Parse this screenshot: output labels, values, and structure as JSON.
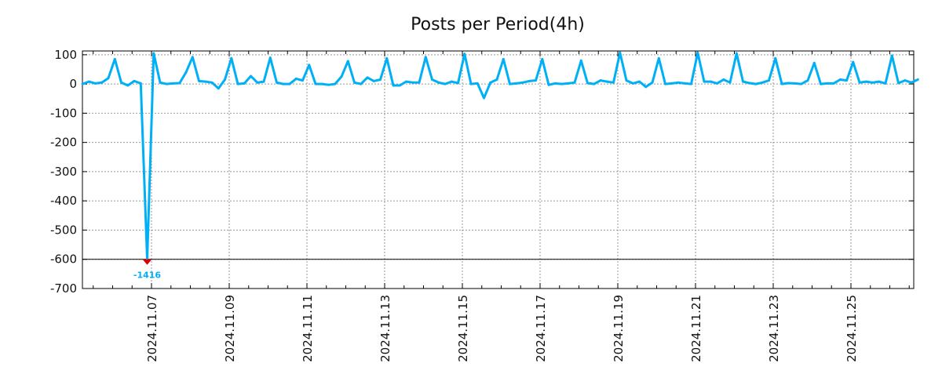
{
  "chart_data": {
    "type": "line",
    "title": "Posts per Period(4h)",
    "xlabel": "",
    "ylabel": "",
    "x_start": "2024-11-05 05:20",
    "step_hours": 4,
    "ylim": [
      -700,
      113
    ],
    "yticks": [
      100,
      0,
      -100,
      -200,
      -300,
      -400,
      -500,
      -600,
      -700
    ],
    "ytick_labels": [
      "100",
      "0",
      "-100",
      "-200",
      "-300",
      "-400",
      "-500",
      "-600",
      "-700"
    ],
    "xtick_labels": [
      "2024.11.07",
      "2024.11.09",
      "2024.11.11",
      "2024.11.13",
      "2024.11.15",
      "2024.11.17",
      "2024.11.19",
      "2024.11.21",
      "2024.11.23",
      "2024.11.25"
    ],
    "grid": true,
    "clip_value": -600,
    "clipped_label": "-1416",
    "colors": {
      "line": "#00b0f6",
      "marker": "#dd0000",
      "clip_line": "#000000"
    },
    "series": [
      {
        "name": "posts",
        "values": [
          0,
          8,
          2,
          5,
          20,
          85,
          5,
          -5,
          10,
          2,
          -1416,
          105,
          5,
          0,
          2,
          3,
          40,
          92,
          10,
          8,
          5,
          -15,
          15,
          88,
          0,
          2,
          27,
          5,
          8,
          90,
          5,
          0,
          0,
          18,
          12,
          65,
          0,
          0,
          -3,
          0,
          25,
          78,
          5,
          0,
          22,
          10,
          15,
          88,
          -5,
          -5,
          8,
          5,
          5,
          92,
          15,
          5,
          0,
          8,
          3,
          103,
          0,
          2,
          -48,
          5,
          15,
          85,
          0,
          2,
          5,
          10,
          12,
          85,
          -3,
          2,
          0,
          2,
          5,
          80,
          3,
          0,
          12,
          8,
          5,
          107,
          12,
          2,
          8,
          -10,
          5,
          88,
          0,
          2,
          5,
          2,
          0,
          107,
          8,
          8,
          2,
          15,
          5,
          105,
          8,
          3,
          0,
          5,
          12,
          88,
          0,
          3,
          2,
          0,
          12,
          72,
          0,
          2,
          2,
          15,
          12,
          75,
          5,
          8,
          5,
          8,
          2,
          97,
          3,
          12,
          5,
          15
        ]
      }
    ]
  }
}
